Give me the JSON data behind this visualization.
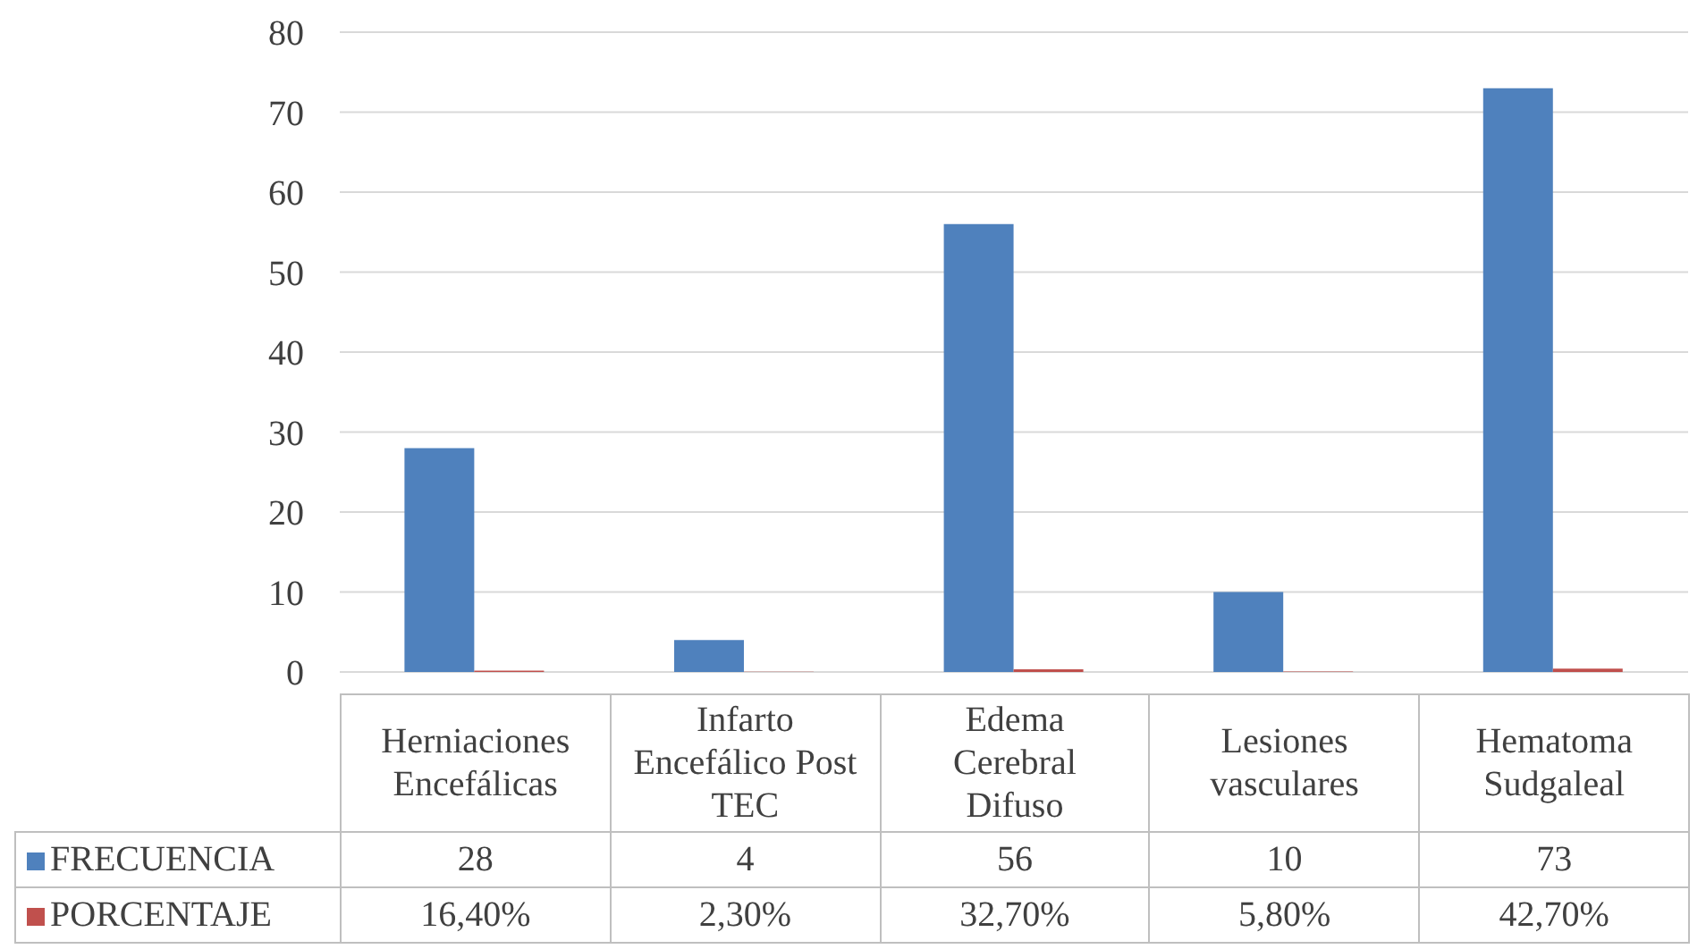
{
  "chart_data": {
    "type": "bar",
    "categories": [
      "Herniaciones Encefálicas",
      "Infarto Encefálico Post TEC",
      "Edema Cerebral Difuso",
      "Lesiones vasculares",
      "Hematoma Sudgaleal"
    ],
    "series": [
      {
        "name": "FRECUENCIA",
        "color": "#4f81bd",
        "values": [
          28,
          4,
          56,
          10,
          73
        ],
        "value_labels": [
          "28",
          "4",
          "56",
          "10",
          "73"
        ]
      },
      {
        "name": "PORCENTAJE",
        "color": "#c0504d",
        "values": [
          0.164,
          0.023,
          0.327,
          0.058,
          0.427
        ],
        "value_labels": [
          "16,40%",
          "2,30%",
          "32,70%",
          "5,80%",
          "42,70%"
        ]
      }
    ],
    "ylim": [
      0,
      80
    ],
    "yticks": [
      0,
      10,
      20,
      30,
      40,
      50,
      60,
      70,
      80
    ],
    "grid": "y",
    "legend": "bottom"
  }
}
